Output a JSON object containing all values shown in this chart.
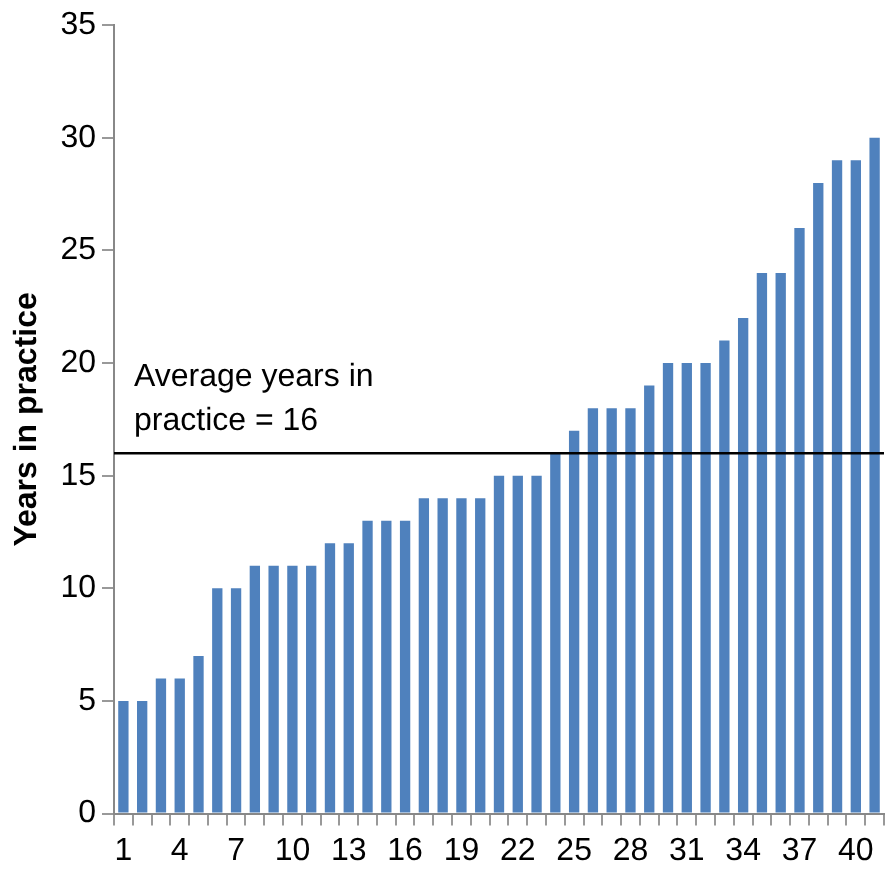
{
  "chart_data": {
    "type": "bar",
    "ylabel": "Years in practice",
    "categories": [
      "1",
      null,
      null,
      "4",
      null,
      null,
      "7",
      null,
      null,
      "10",
      null,
      null,
      "13",
      null,
      null,
      "16",
      null,
      null,
      "19",
      null,
      null,
      "22",
      null,
      null,
      "25",
      null,
      null,
      "28",
      null,
      null,
      "31",
      null,
      null,
      "34",
      null,
      null,
      "37",
      null,
      null,
      "40",
      null
    ],
    "values": [
      5,
      5,
      6,
      6,
      7,
      10,
      10,
      11,
      11,
      11,
      11,
      12,
      12,
      13,
      13,
      13,
      14,
      14,
      14,
      14,
      15,
      15,
      15,
      16,
      17,
      18,
      18,
      18,
      19,
      20,
      20,
      20,
      21,
      22,
      24,
      24,
      26,
      28,
      29,
      29,
      30
    ],
    "color": "#4f81bd",
    "ylim": [
      0,
      35
    ],
    "yticks": [
      0,
      5,
      10,
      15,
      20,
      25,
      30,
      35
    ],
    "grid": false,
    "legend": false,
    "ref_lines": [
      {
        "axis": "y",
        "value": 16,
        "label": "Average years in practice = 16",
        "color": "#000000"
      }
    ]
  }
}
